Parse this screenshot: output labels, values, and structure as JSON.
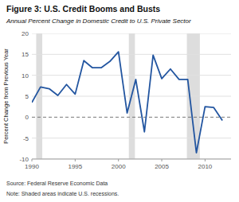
{
  "chart_data": {
    "type": "line",
    "title": "Figure 3: U.S. Credit Booms and Busts",
    "subtitle": "Annual Percent Change in Domestic Credit to U.S. Private Sector",
    "ylabel": "Percent Change from Previous Year",
    "source": "Source: Federal Reserve Economic Data",
    "note": "Note: Shaded areas indicate U.S. recessions.",
    "x": [
      1990,
      1991,
      1992,
      1993,
      1994,
      1995,
      1996,
      1997,
      1998,
      1999,
      2000,
      2001,
      2002,
      2003,
      2004,
      2005,
      2006,
      2007,
      2008,
      2009,
      2010,
      2011,
      2012
    ],
    "values": [
      3.5,
      7.2,
      6.8,
      5.2,
      7.8,
      5.5,
      13.5,
      11.8,
      11.8,
      13.3,
      15.6,
      1.0,
      9.0,
      -3.5,
      14.8,
      9.2,
      11.5,
      9.0,
      9.0,
      -8.5,
      2.5,
      2.3,
      -0.8
    ],
    "color": "#2255A0",
    "recessions": [
      {
        "start": 1990.5,
        "end": 1991.2
      },
      {
        "start": 2001.2,
        "end": 2001.9
      },
      {
        "start": 2007.9,
        "end": 2009.4
      }
    ],
    "xlim": [
      1990,
      2013
    ],
    "xticks": [
      1990,
      1995,
      2000,
      2005,
      2010
    ],
    "ylim": [
      -10,
      20
    ],
    "yticks": [
      -10,
      -5,
      0,
      5,
      10,
      15,
      20
    ],
    "grid": true
  }
}
